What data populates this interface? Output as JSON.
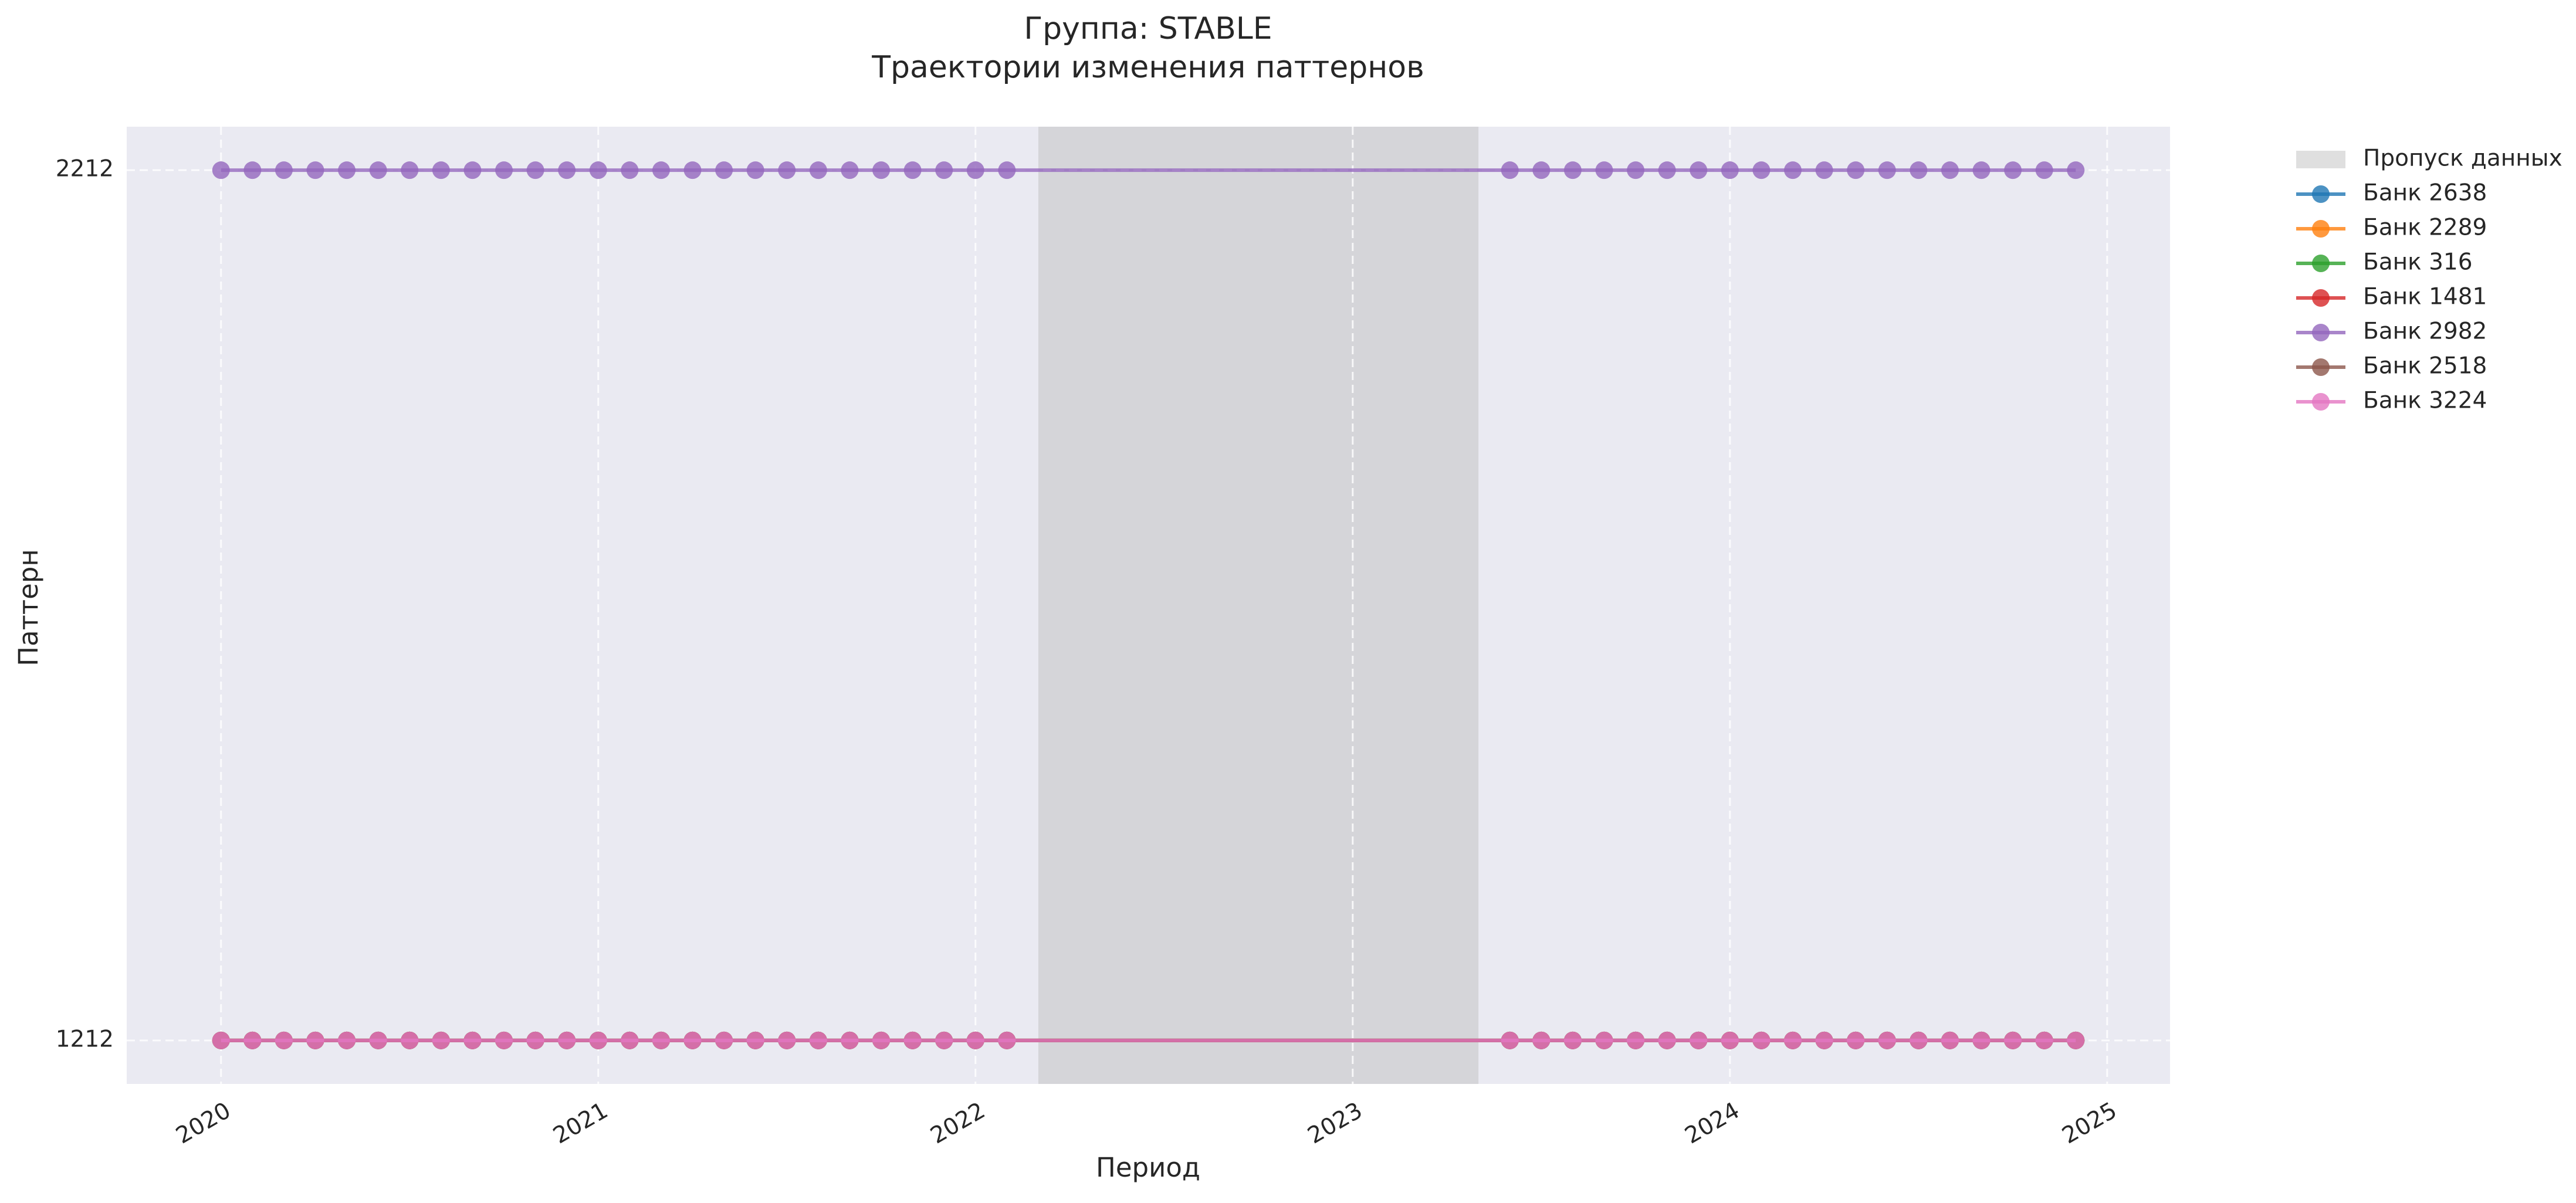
{
  "chart_data": {
    "type": "line",
    "title": "Группа: STABLE",
    "subtitle": "Траектории изменения паттернов",
    "x_label": "Период",
    "y_label": "Паттерн",
    "x": [
      "2020-01",
      "2020-02",
      "2020-03",
      "2020-04",
      "2020-05",
      "2020-06",
      "2020-07",
      "2020-08",
      "2020-09",
      "2020-10",
      "2020-11",
      "2020-12",
      "2021-01",
      "2021-02",
      "2021-03",
      "2021-04",
      "2021-05",
      "2021-06",
      "2021-07",
      "2021-08",
      "2021-09",
      "2021-10",
      "2021-11",
      "2021-12",
      "2022-01",
      "2022-02",
      "2023-06",
      "2023-07",
      "2023-08",
      "2023-09",
      "2023-10",
      "2023-11",
      "2023-12",
      "2024-01",
      "2024-02",
      "2024-03",
      "2024-04",
      "2024-05",
      "2024-06",
      "2024-07",
      "2024-08",
      "2024-09",
      "2024-10",
      "2024-11",
      "2024-12"
    ],
    "xlim": [
      "2019-10",
      "2025-03"
    ],
    "xticks": [
      2020,
      2021,
      2022,
      2023,
      2024,
      2025
    ],
    "ylim": [
      1162,
      2262
    ],
    "yticks": [
      1212,
      2212
    ],
    "grid": true,
    "gap": {
      "label": "Пропуск данных",
      "start": "2022-03",
      "end": "2023-05",
      "color": "#bfbfbf"
    },
    "series": [
      {
        "name": "Банк 2638",
        "color": "#1f77b4",
        "values": [
          1212,
          1212,
          1212,
          1212,
          1212,
          1212,
          1212,
          1212,
          1212,
          1212,
          1212,
          1212,
          1212,
          1212,
          1212,
          1212,
          1212,
          1212,
          1212,
          1212,
          1212,
          1212,
          1212,
          1212,
          1212,
          1212,
          1212,
          1212,
          1212,
          1212,
          1212,
          1212,
          1212,
          1212,
          1212,
          1212,
          1212,
          1212,
          1212,
          1212,
          1212,
          1212,
          1212,
          1212,
          1212
        ]
      },
      {
        "name": "Банк 2289",
        "color": "#ff7f0e",
        "values": [
          1212,
          1212,
          1212,
          1212,
          1212,
          1212,
          1212,
          1212,
          1212,
          1212,
          1212,
          1212,
          1212,
          1212,
          1212,
          1212,
          1212,
          1212,
          1212,
          1212,
          1212,
          1212,
          1212,
          1212,
          1212,
          1212,
          1212,
          1212,
          1212,
          1212,
          1212,
          1212,
          1212,
          1212,
          1212,
          1212,
          1212,
          1212,
          1212,
          1212,
          1212,
          1212,
          1212,
          1212,
          1212
        ]
      },
      {
        "name": "Банк 316",
        "color": "#2ca02c",
        "values": [
          1212,
          1212,
          1212,
          1212,
          1212,
          1212,
          1212,
          1212,
          1212,
          1212,
          1212,
          1212,
          1212,
          1212,
          1212,
          1212,
          1212,
          1212,
          1212,
          1212,
          1212,
          1212,
          1212,
          1212,
          1212,
          1212,
          1212,
          1212,
          1212,
          1212,
          1212,
          1212,
          1212,
          1212,
          1212,
          1212,
          1212,
          1212,
          1212,
          1212,
          1212,
          1212,
          1212,
          1212,
          1212
        ]
      },
      {
        "name": "Банк 1481",
        "color": "#d62728",
        "values": [
          1212,
          1212,
          1212,
          1212,
          1212,
          1212,
          1212,
          1212,
          1212,
          1212,
          1212,
          1212,
          1212,
          1212,
          1212,
          1212,
          1212,
          1212,
          1212,
          1212,
          1212,
          1212,
          1212,
          1212,
          1212,
          1212,
          1212,
          1212,
          1212,
          1212,
          1212,
          1212,
          1212,
          1212,
          1212,
          1212,
          1212,
          1212,
          1212,
          1212,
          1212,
          1212,
          1212,
          1212,
          1212
        ]
      },
      {
        "name": "Банк 2982",
        "color": "#9467bd",
        "values": [
          2212,
          2212,
          2212,
          2212,
          2212,
          2212,
          2212,
          2212,
          2212,
          2212,
          2212,
          2212,
          2212,
          2212,
          2212,
          2212,
          2212,
          2212,
          2212,
          2212,
          2212,
          2212,
          2212,
          2212,
          2212,
          2212,
          2212,
          2212,
          2212,
          2212,
          2212,
          2212,
          2212,
          2212,
          2212,
          2212,
          2212,
          2212,
          2212,
          2212,
          2212,
          2212,
          2212,
          2212,
          2212
        ]
      },
      {
        "name": "Банк 2518",
        "color": "#8c564b",
        "values": [
          1212,
          1212,
          1212,
          1212,
          1212,
          1212,
          1212,
          1212,
          1212,
          1212,
          1212,
          1212,
          1212,
          1212,
          1212,
          1212,
          1212,
          1212,
          1212,
          1212,
          1212,
          1212,
          1212,
          1212,
          1212,
          1212,
          1212,
          1212,
          1212,
          1212,
          1212,
          1212,
          1212,
          1212,
          1212,
          1212,
          1212,
          1212,
          1212,
          1212,
          1212,
          1212,
          1212,
          1212,
          1212
        ]
      },
      {
        "name": "Банк 3224",
        "color": "#e377c2",
        "values": [
          1212,
          1212,
          1212,
          1212,
          1212,
          1212,
          1212,
          1212,
          1212,
          1212,
          1212,
          1212,
          1212,
          1212,
          1212,
          1212,
          1212,
          1212,
          1212,
          1212,
          1212,
          1212,
          1212,
          1212,
          1212,
          1212,
          1212,
          1212,
          1212,
          1212,
          1212,
          1212,
          1212,
          1212,
          1212,
          1212,
          1212,
          1212,
          1212,
          1212,
          1212,
          1212,
          1212,
          1212,
          1212
        ]
      }
    ]
  }
}
